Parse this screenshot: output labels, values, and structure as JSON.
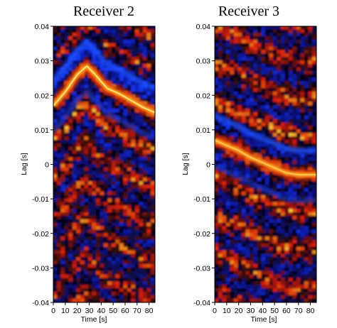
{
  "chart_data": [
    {
      "type": "heatmap",
      "title": "Receiver 2",
      "xlabel": "Time [s]",
      "ylabel": "Lag [s]",
      "xlim": [
        0,
        85
      ],
      "ylim": [
        -0.04,
        0.04
      ],
      "xticks": [
        "0",
        "10",
        "20",
        "30",
        "40",
        "50",
        "60",
        "70",
        "80"
      ],
      "yticks": [
        "0.04",
        "0.03",
        "0.02",
        "0.01",
        "0",
        "-0.01",
        "-0.02",
        "-0.03",
        "-0.04"
      ],
      "colormap": "blue-black-red-yellow",
      "ridge": {
        "time_s": [
          0,
          10,
          20,
          28,
          35,
          45,
          55,
          65,
          75,
          85
        ],
        "lag_s": [
          0.017,
          0.021,
          0.026,
          0.0285,
          0.026,
          0.022,
          0.0205,
          0.0185,
          0.0165,
          0.015
        ]
      }
    },
    {
      "type": "heatmap",
      "title": "Receiver 3",
      "xlabel": "Time [s]",
      "ylabel": "Lag [s]",
      "xlim": [
        0,
        85
      ],
      "ylim": [
        -0.04,
        0.04
      ],
      "xticks": [
        "0",
        "10",
        "20",
        "30",
        "40",
        "50",
        "60",
        "70",
        "80"
      ],
      "yticks": [
        "0.04",
        "0.03",
        "0.02",
        "0.01",
        "0",
        "-0.01",
        "-0.02",
        "-0.03",
        "-0.04"
      ],
      "colormap": "blue-black-red-yellow",
      "ridge": {
        "time_s": [
          0,
          10,
          20,
          30,
          40,
          50,
          60,
          70,
          85
        ],
        "lag_s": [
          0.007,
          0.0055,
          0.004,
          0.002,
          0.0005,
          -0.001,
          -0.0025,
          -0.003,
          -0.003
        ]
      }
    }
  ]
}
